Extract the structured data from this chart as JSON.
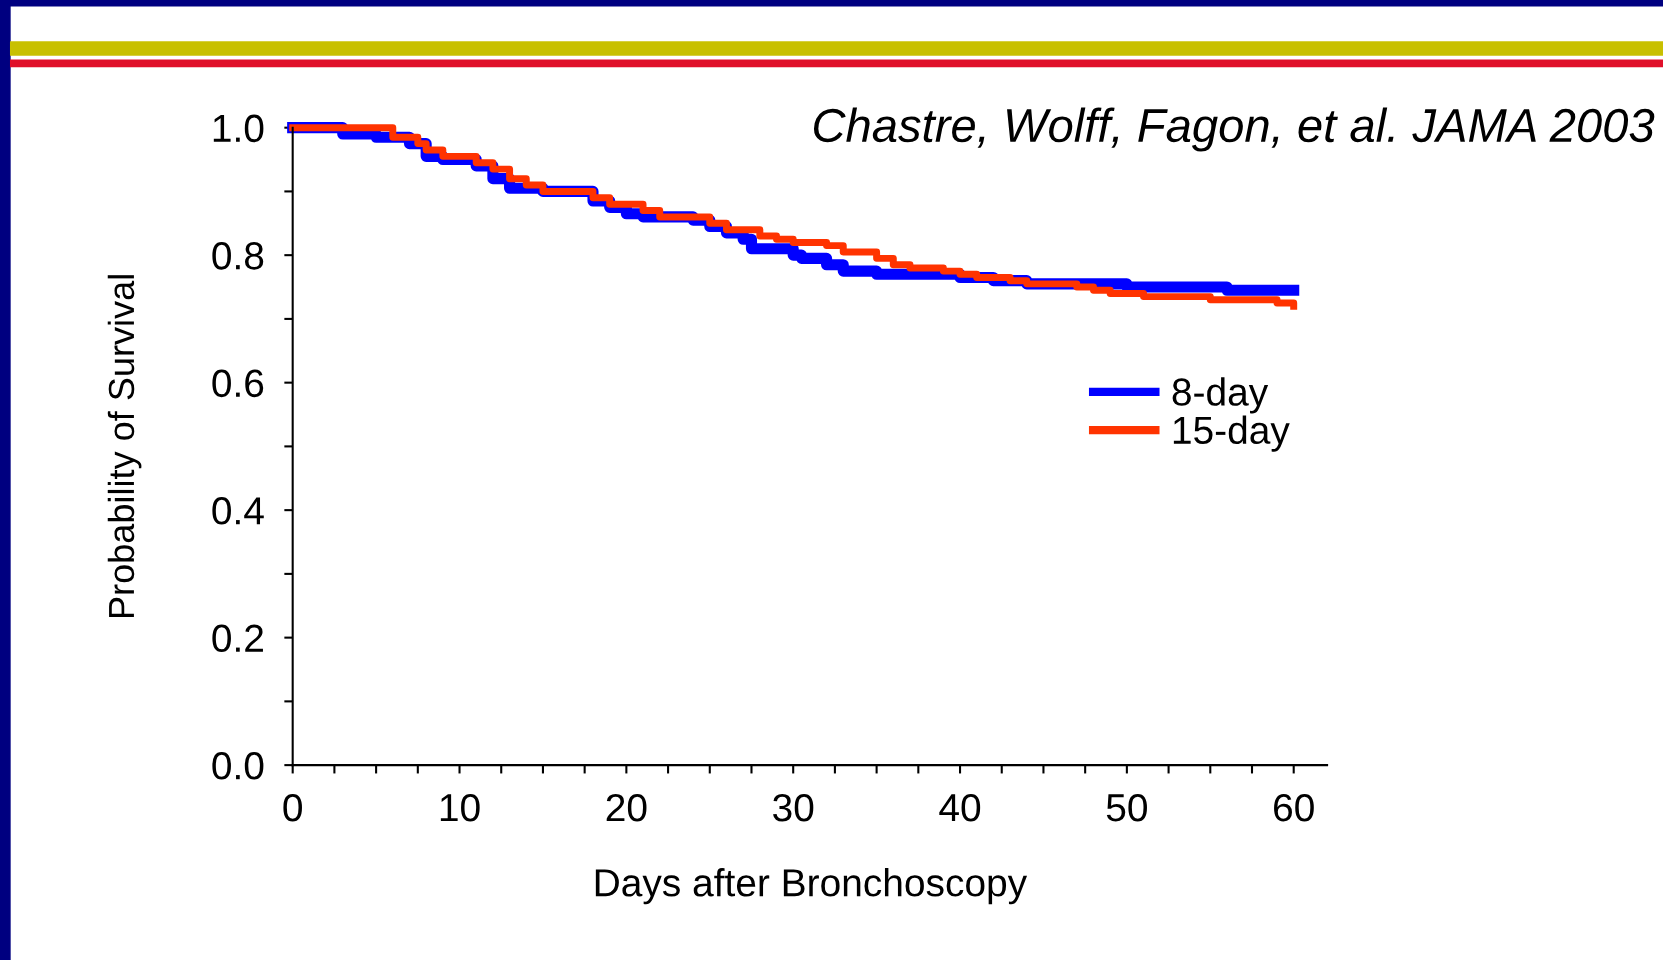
{
  "chart_data": {
    "type": "step",
    "xlabel": "Days after Bronchoscopy",
    "ylabel": "Probability of Survival",
    "annotations": [
      "Chastre, Wolff, Fagon, et al. JAMA 2003"
    ],
    "xlim": [
      0,
      62
    ],
    "ylim": [
      0,
      1.0
    ],
    "xticks": [
      0,
      {
        "value": 2.5,
        "label": null
      },
      {
        "value": 5,
        "label": null
      },
      {
        "value": 7.5,
        "label": null
      },
      10,
      {
        "value": 12.5,
        "label": null
      },
      {
        "value": 15,
        "label": null
      },
      {
        "value": 17.5,
        "label": null
      },
      20,
      {
        "value": 22.5,
        "label": null
      },
      {
        "value": 25,
        "label": null
      },
      {
        "value": 27.5,
        "label": null
      },
      30,
      {
        "value": 32.5,
        "label": null
      },
      {
        "value": 35,
        "label": null
      },
      {
        "value": 37.5,
        "label": null
      },
      40,
      {
        "value": 42.5,
        "label": null
      },
      {
        "value": 45,
        "label": null
      },
      {
        "value": 47.5,
        "label": null
      },
      50,
      {
        "value": 52.5,
        "label": null
      },
      {
        "value": 55,
        "label": null
      },
      {
        "value": 57.5,
        "label": null
      },
      60
    ],
    "yticks": [
      {
        "value": 0,
        "label": "0.0"
      },
      {
        "value": 0.1,
        "label": null
      },
      0.2,
      {
        "value": 0.3,
        "label": null
      },
      0.4,
      {
        "value": 0.5,
        "label": null
      },
      0.6,
      {
        "value": 0.7,
        "label": null
      },
      0.8,
      {
        "value": 0.9,
        "label": null
      },
      {
        "value": 1.0,
        "label": "1.0"
      }
    ],
    "grid": false,
    "legend": "right",
    "marker": "none",
    "line_style": "solid",
    "series": [
      {
        "name": "8-day",
        "color": "#0000ff",
        "x": [
          0,
          3,
          5,
          7,
          8,
          9,
          11,
          12,
          13,
          15,
          18,
          19,
          20,
          21,
          24,
          25,
          26,
          27,
          27.5,
          30,
          30.5,
          32,
          33,
          35,
          40,
          42,
          44,
          50,
          56,
          60
        ],
        "values": [
          1.0,
          0.99,
          0.985,
          0.975,
          0.955,
          0.95,
          0.94,
          0.92,
          0.905,
          0.9,
          0.885,
          0.875,
          0.865,
          0.86,
          0.855,
          0.845,
          0.835,
          0.825,
          0.81,
          0.8,
          0.795,
          0.785,
          0.775,
          0.77,
          0.765,
          0.76,
          0.755,
          0.75,
          0.745,
          0.745
        ]
      },
      {
        "name": "15-day",
        "color": "#ff3300",
        "x": [
          0,
          6,
          7.5,
          8,
          9,
          11,
          12,
          13,
          14,
          15,
          18,
          19,
          21,
          22,
          25,
          26,
          28,
          29,
          30,
          32,
          33,
          35,
          36,
          37,
          39,
          40,
          41,
          43,
          44,
          47,
          48,
          49,
          51,
          55,
          59,
          60
        ],
        "values": [
          1.0,
          0.985,
          0.975,
          0.965,
          0.955,
          0.945,
          0.935,
          0.92,
          0.91,
          0.9,
          0.89,
          0.88,
          0.87,
          0.86,
          0.85,
          0.84,
          0.83,
          0.825,
          0.82,
          0.815,
          0.805,
          0.795,
          0.785,
          0.78,
          0.775,
          0.77,
          0.765,
          0.76,
          0.755,
          0.75,
          0.745,
          0.74,
          0.735,
          0.73,
          0.725,
          0.72
        ]
      }
    ]
  }
}
